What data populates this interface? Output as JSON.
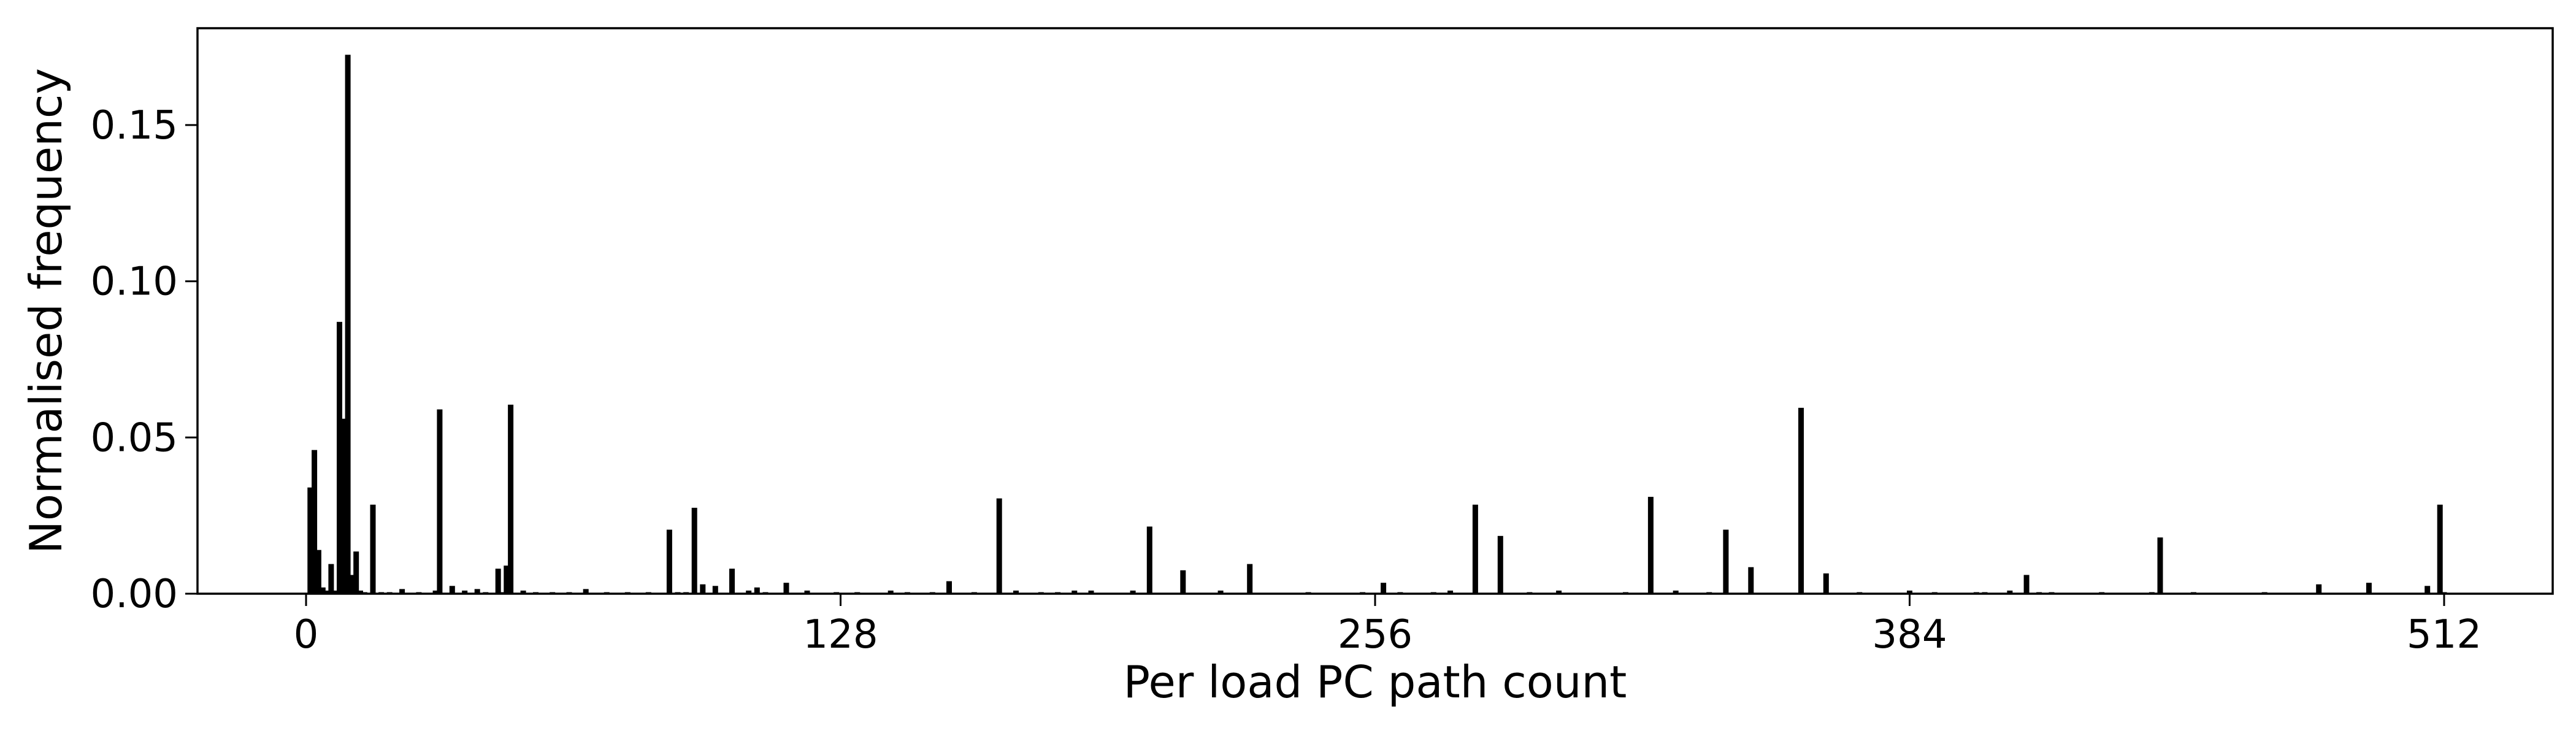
{
  "chart_data": {
    "type": "bar",
    "title": "",
    "xlabel": "Per load PC path count",
    "ylabel": "Normalised frequency",
    "xlim": [
      -26,
      538
    ],
    "ylim": [
      0,
      0.181
    ],
    "xticks": [
      0,
      128,
      256,
      384,
      512
    ],
    "xtick_labels": [
      "0",
      "128",
      "256",
      "384",
      "512"
    ],
    "yticks": [
      0.0,
      0.05,
      0.1,
      0.15
    ],
    "ytick_labels": [
      "0.00",
      "0.05",
      "0.10",
      "0.15"
    ],
    "grid": false,
    "legend": "none",
    "bar_color": "#000000",
    "series": [
      {
        "x": [
          1,
          2,
          3,
          4,
          5,
          6,
          7,
          8,
          9,
          10,
          11,
          12,
          13,
          14,
          16,
          18,
          20,
          23,
          27,
          31,
          32,
          35,
          38,
          41,
          43,
          46,
          47,
          48,
          49,
          52,
          55,
          59,
          63,
          67,
          72,
          77,
          82,
          87,
          89,
          91,
          93,
          95,
          98,
          102,
          106,
          108,
          110,
          115,
          120,
          127,
          132,
          140,
          144,
          150,
          154,
          160,
          166,
          170,
          176,
          180,
          184,
          188,
          198,
          202,
          210,
          219,
          226,
          240,
          253,
          258,
          262,
          270,
          274,
          280,
          286,
          293,
          300,
          316,
          322,
          328,
          336,
          340,
          346,
          358,
          364,
          372,
          384,
          390,
          400,
          402,
          408,
          412,
          415,
          418,
          430,
          442,
          444,
          452,
          469,
          482,
          494,
          508,
          511,
          512
        ],
        "values": [
          0.034,
          0.046,
          0.014,
          0.002,
          0.001,
          0.0095,
          0.001,
          0.087,
          0.056,
          0.1725,
          0.006,
          0.0135,
          0.001,
          0.0005,
          0.0285,
          0.0005,
          0.0005,
          0.0015,
          0.0005,
          0.001,
          0.059,
          0.0025,
          0.001,
          0.0015,
          0.0005,
          0.008,
          0.0005,
          0.009,
          0.0605,
          0.001,
          0.0005,
          0.0005,
          0.0005,
          0.0015,
          0.0005,
          0.0005,
          0.0005,
          0.0205,
          0.0005,
          0.0005,
          0.0275,
          0.003,
          0.0025,
          0.008,
          0.001,
          0.002,
          0.0005,
          0.0035,
          0.001,
          0.0005,
          0.0005,
          0.001,
          0.0005,
          0.0005,
          0.004,
          0.0005,
          0.0305,
          0.001,
          0.0005,
          0.0005,
          0.001,
          0.001,
          0.001,
          0.0215,
          0.0075,
          0.001,
          0.0095,
          0.0005,
          0.0005,
          0.0035,
          0.0005,
          0.0005,
          0.001,
          0.0285,
          0.0185,
          0.0005,
          0.001,
          0.0005,
          0.031,
          0.001,
          0.0005,
          0.0205,
          0.0085,
          0.0595,
          0.0065,
          0.0005,
          0.001,
          0.0005,
          0.0005,
          0.0005,
          0.001,
          0.006,
          0.0005,
          0.0005,
          0.0005,
          0.0005,
          0.018,
          0.0005,
          0.0005,
          0.003,
          0.0035,
          0.0025,
          0.0285,
          0.0005
        ]
      }
    ]
  }
}
